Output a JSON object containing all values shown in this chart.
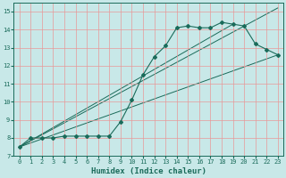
{
  "xlabel": "Humidex (Indice chaleur)",
  "bg_color": "#c8e8e8",
  "grid_color": "#e89898",
  "line_color": "#1a6b5a",
  "xlim": [
    -0.5,
    23.5
  ],
  "ylim": [
    7,
    15.5
  ],
  "xticks": [
    0,
    1,
    2,
    3,
    4,
    5,
    6,
    7,
    8,
    9,
    10,
    11,
    12,
    13,
    14,
    15,
    16,
    17,
    18,
    19,
    20,
    21,
    22,
    23
  ],
  "yticks": [
    7,
    8,
    9,
    10,
    11,
    12,
    13,
    14,
    15
  ],
  "series1_x": [
    0,
    1,
    2,
    3,
    4,
    5,
    6,
    7,
    8,
    9,
    10,
    11,
    12,
    13,
    14,
    15,
    16,
    17,
    18,
    19,
    20,
    21,
    22,
    23
  ],
  "series1_y": [
    7.5,
    8.0,
    8.0,
    8.0,
    8.1,
    8.1,
    8.1,
    8.1,
    8.1,
    8.9,
    10.1,
    11.5,
    12.5,
    13.1,
    14.1,
    14.2,
    14.1,
    14.1,
    14.4,
    14.3,
    14.2,
    13.2,
    12.9,
    12.6
  ],
  "series2_x": [
    0,
    23
  ],
  "series2_y": [
    7.5,
    12.6
  ],
  "series3_x": [
    0,
    19
  ],
  "series3_y": [
    7.5,
    14.3
  ],
  "series4_x": [
    0,
    23
  ],
  "series4_y": [
    7.5,
    15.2
  ]
}
